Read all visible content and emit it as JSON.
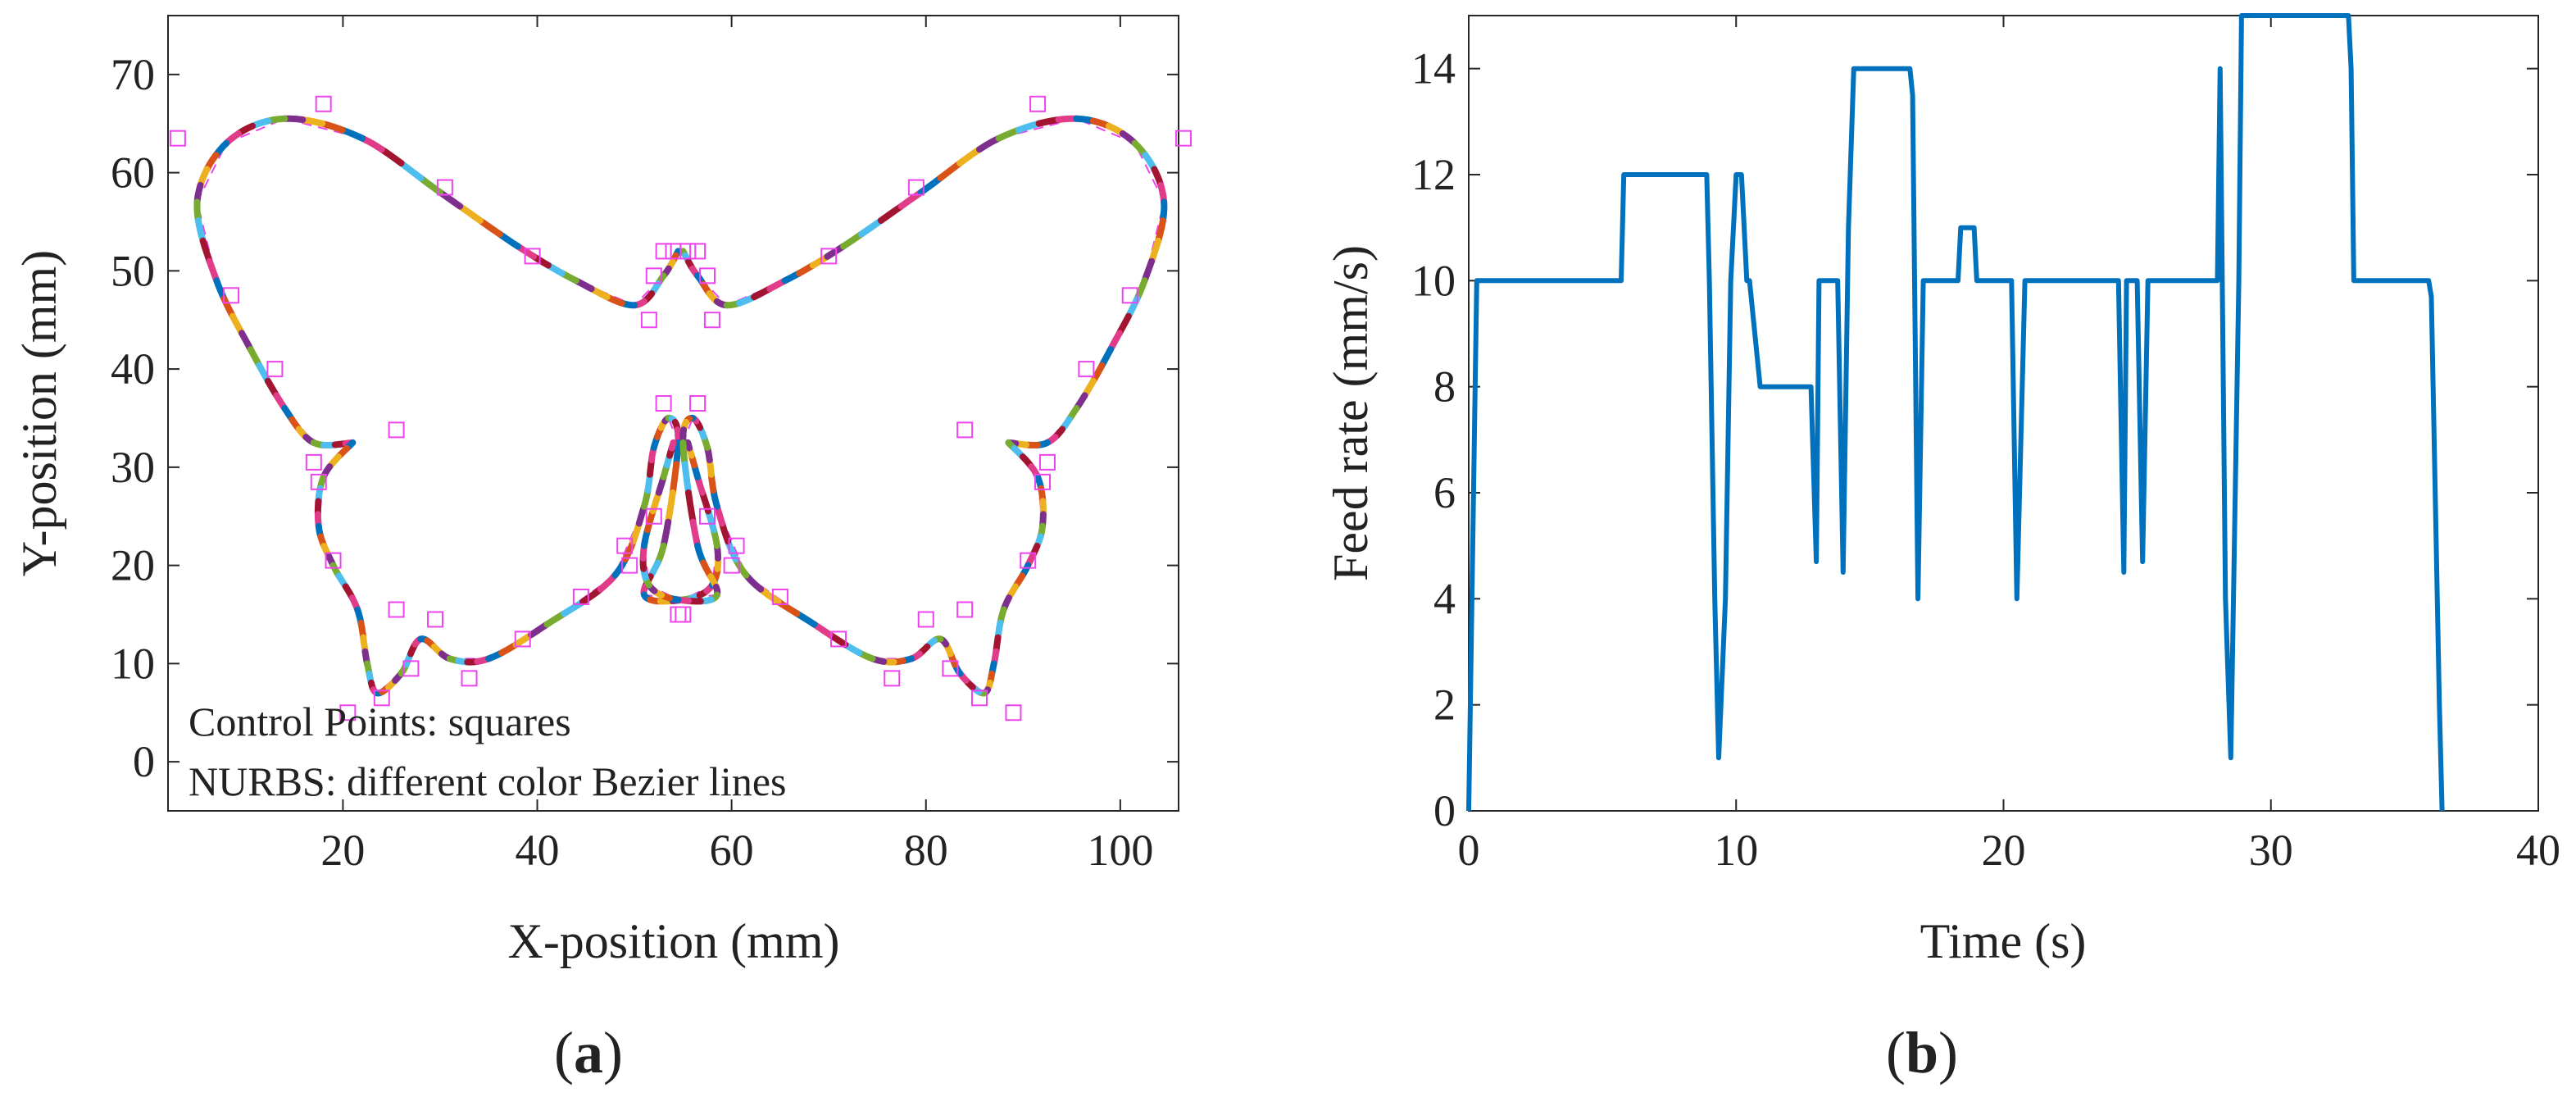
{
  "chart_data": [
    {
      "type": "line",
      "panel_label": "(a)",
      "xlabel": "X-position (mm)",
      "ylabel": "Y-position (mm)",
      "xlim": [
        2,
        106
      ],
      "ylim": [
        -5,
        76
      ],
      "xticks": [
        20,
        40,
        60,
        80,
        100
      ],
      "yticks": [
        0,
        10,
        20,
        30,
        40,
        50,
        60,
        70
      ],
      "annotations": [
        "Control Points: squares",
        "NURBS: different color Bezier lines"
      ],
      "segment_colors": [
        "#0072bd",
        "#d95319",
        "#edb120",
        "#7e2f8e",
        "#77ac30",
        "#4dbeee",
        "#a2142f",
        "#e03c8a"
      ],
      "control_polygon_color": "#ee44ee",
      "upper_wing_left": [
        [
          54.5,
          52
        ],
        [
          53,
          49.5
        ],
        [
          50,
          46.5
        ],
        [
          44,
          49
        ],
        [
          38,
          52.5
        ],
        [
          30,
          58
        ],
        [
          22,
          63.5
        ],
        [
          14,
          65.5
        ],
        [
          8,
          63
        ],
        [
          5,
          57
        ],
        [
          7,
          49
        ],
        [
          10.5,
          42
        ],
        [
          14,
          36
        ],
        [
          17,
          32.5
        ],
        [
          21,
          32.5
        ]
      ],
      "lower_wing_left": [
        [
          21,
          32.5
        ],
        [
          18,
          29
        ],
        [
          17.5,
          24
        ],
        [
          19,
          20
        ],
        [
          21.5,
          15.5
        ],
        [
          22.5,
          10
        ],
        [
          23.5,
          7
        ],
        [
          26,
          9
        ],
        [
          28,
          12.5
        ],
        [
          31,
          10.5
        ],
        [
          35,
          10.5
        ],
        [
          41,
          14
        ],
        [
          48,
          19
        ],
        [
          51,
          26
        ],
        [
          52,
          32
        ],
        [
          53.5,
          35
        ],
        [
          54.5,
          32.5
        ],
        [
          53,
          22
        ],
        [
          51,
          17
        ],
        [
          55,
          16.5
        ],
        [
          58,
          18
        ],
        [
          58.5,
          22
        ],
        [
          56.5,
          29
        ],
        [
          55.5,
          32.5
        ]
      ],
      "control_points_left": [
        [
          3,
          63.5
        ],
        [
          18,
          67
        ],
        [
          30.5,
          58.5
        ],
        [
          39.5,
          51.5
        ],
        [
          51.5,
          45
        ],
        [
          52,
          49.5
        ],
        [
          53,
          52
        ],
        [
          54,
          52
        ],
        [
          8.5,
          47.5
        ],
        [
          13,
          40
        ],
        [
          17,
          30.5
        ],
        [
          17.5,
          28.5
        ],
        [
          19,
          20.5
        ],
        [
          25.5,
          15.5
        ],
        [
          25.5,
          33.8
        ],
        [
          24,
          6.5
        ],
        [
          20.5,
          5
        ],
        [
          27,
          9.5
        ],
        [
          29.5,
          14.5
        ],
        [
          33,
          8.5
        ],
        [
          38.5,
          12.5
        ],
        [
          44.5,
          16.8
        ],
        [
          49,
          22
        ],
        [
          49.5,
          20
        ],
        [
          52,
          25
        ],
        [
          53,
          36.5
        ],
        [
          54.5,
          15
        ]
      ],
      "mirror_x": 109.5
    },
    {
      "type": "line",
      "panel_label": "(b)",
      "xlabel": "Time (s)",
      "ylabel": "Feed rate (mm/s)",
      "xlim": [
        0,
        40
      ],
      "ylim": [
        0,
        15
      ],
      "xticks": [
        0,
        10,
        20,
        30,
        40
      ],
      "yticks": [
        0,
        2,
        4,
        6,
        8,
        10,
        12,
        14
      ],
      "series": [
        {
          "name": "Feed rate",
          "color": "#0072bd",
          "x": [
            0,
            0.3,
            5.7,
            5.8,
            8.9,
            9.0,
            9.2,
            9.35,
            9.6,
            9.8,
            10,
            10.2,
            10.4,
            10.5,
            10.9,
            11.0,
            12.8,
            13.0,
            13.1,
            13.3,
            13.8,
            14.0,
            14.2,
            14.4,
            16.5,
            16.6,
            16.8,
            17.0,
            18.3,
            18.4,
            18.9,
            19.0,
            19.5,
            20.3,
            20.5,
            20.8,
            24.3,
            24.5,
            24.6,
            25.0,
            25.2,
            25.4,
            25.6,
            28.0,
            28.1,
            28.3,
            28.5,
            28.8,
            28.9,
            32.9,
            33.0,
            33.1,
            35.9,
            36.0,
            36.3,
            36.4
          ],
          "y": [
            0,
            10,
            10,
            12,
            12,
            10,
            4,
            1,
            4,
            10,
            12,
            12,
            10,
            10,
            8,
            8,
            8,
            4.7,
            10,
            10,
            10,
            4.5,
            11,
            14,
            14,
            13.5,
            4,
            10,
            10,
            11,
            11,
            10,
            10,
            10,
            4,
            10,
            10,
            4.5,
            10,
            10,
            4.7,
            10,
            10,
            10,
            14,
            4,
            1,
            10,
            15,
            15,
            14,
            10,
            10,
            9.7,
            2,
            0
          ]
        }
      ]
    }
  ]
}
